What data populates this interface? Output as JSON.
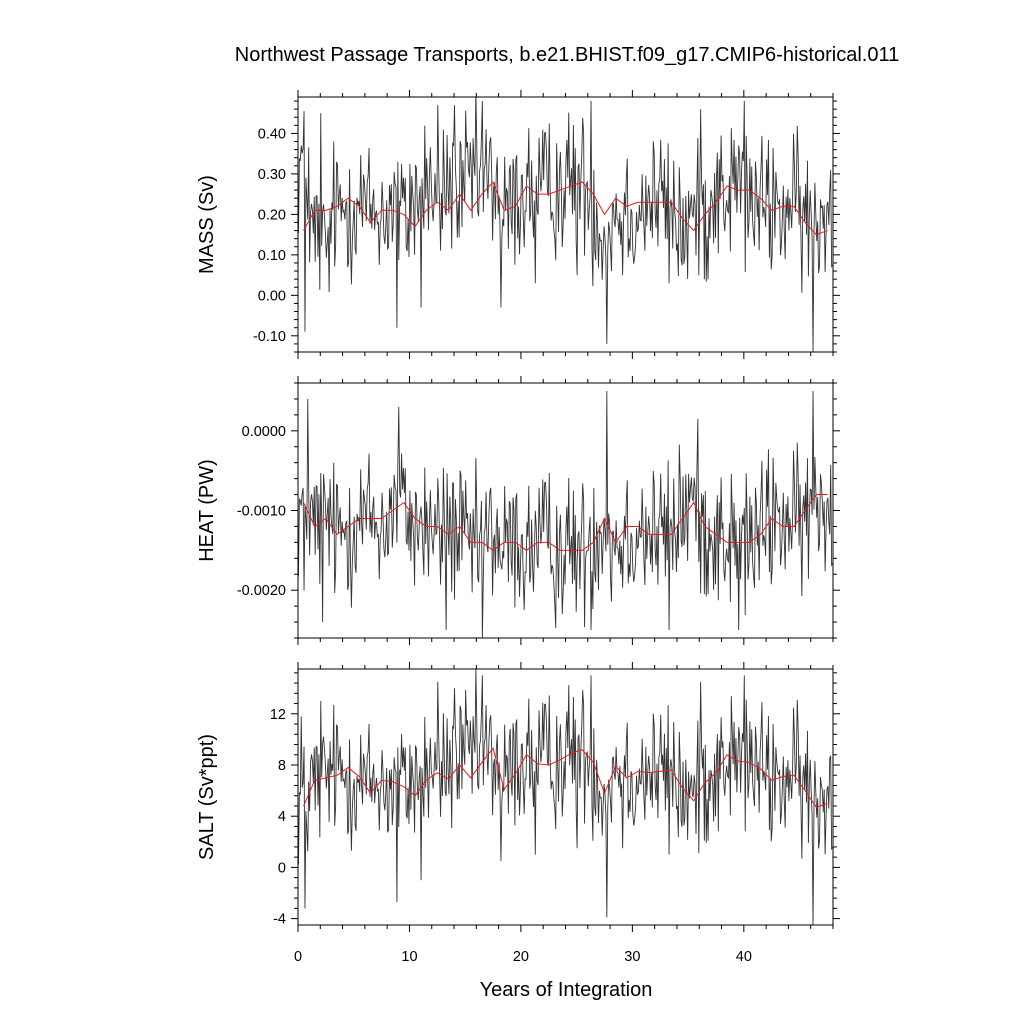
{
  "figure": {
    "title": "Northwest Passage Transports, b.e21.BHIST.f09_g17.CMIP6-historical.011"
  },
  "colors": {
    "raw_series": "#333333",
    "annual_mean": "#e41a1c",
    "frame": "#000000"
  },
  "chart_data": [
    {
      "type": "line",
      "ylabel": "MASS (Sv)",
      "xlabel": "",
      "xlim": [
        0,
        48
      ],
      "ylim": [
        -0.14,
        0.49
      ],
      "x_ticks": [
        0,
        10,
        20,
        30,
        40
      ],
      "y_ticks": [
        -0.1,
        0.0,
        0.1,
        0.2,
        0.3,
        0.4
      ],
      "y_tick_labels": [
        "-0.10",
        "0.00",
        "0.10",
        "0.20",
        "0.30",
        "0.40"
      ],
      "grid": false,
      "series": [
        {
          "style": "monthly",
          "base": [
            0.31,
            0.15,
            0.12,
            0.21,
            0.22,
            0.23,
            0.21,
            0.2,
            0.22,
            0.19,
            0.24,
            0.28,
            0.23,
            0.27,
            0.23,
            0.29,
            0.29,
            0.28,
            0.19,
            0.23,
            0.26,
            0.26,
            0.26,
            0.27,
            0.28,
            0.28,
            0.2,
            0.17,
            0.2,
            0.21,
            0.21,
            0.23,
            0.24,
            0.2,
            0.16,
            0.19,
            0.2,
            0.26,
            0.25,
            0.29,
            0.23,
            0.22,
            0.22,
            0.21,
            0.22,
            0.19,
            0.17,
            0.22
          ],
          "spread": 0.085,
          "spikes": [
            [
              0.3,
              0.37
            ],
            [
              0.6,
              -0.09
            ],
            [
              2.0,
              0.45
            ],
            [
              8.9,
              -0.08
            ],
            [
              11.0,
              -0.03
            ],
            [
              12.5,
              0.47
            ],
            [
              14.0,
              0.47
            ],
            [
              16.5,
              0.48
            ],
            [
              18.2,
              -0.03
            ],
            [
              21.3,
              0.03
            ],
            [
              25.0,
              0.05
            ],
            [
              26.3,
              0.48
            ],
            [
              27.7,
              -0.12
            ],
            [
              29.1,
              0.05
            ],
            [
              33.3,
              0.03
            ],
            [
              36.1,
              0.46
            ],
            [
              40.0,
              0.48
            ],
            [
              46.2,
              -0.14
            ],
            [
              47.7,
              0.26
            ]
          ]
        },
        {
          "style": "annual",
          "x": [
            0.5,
            1.5,
            2.5,
            3.5,
            4.5,
            5.5,
            6.5,
            7.5,
            8.5,
            9.5,
            10.5,
            11.5,
            12.5,
            13.5,
            14.5,
            15.5,
            16.5,
            17.5,
            18.5,
            19.5,
            20.5,
            21.5,
            22.5,
            23.5,
            24.5,
            25.5,
            26.5,
            27.5,
            28.5,
            29.5,
            30.5,
            31.5,
            32.5,
            33.5,
            34.5,
            35.5,
            36.5,
            37.5,
            38.5,
            39.5,
            40.5,
            41.5,
            42.5,
            43.5,
            44.5,
            45.5,
            46.5,
            47.5
          ],
          "y": [
            0.16,
            0.21,
            0.21,
            0.22,
            0.24,
            0.22,
            0.18,
            0.21,
            0.21,
            0.2,
            0.17,
            0.21,
            0.23,
            0.21,
            0.25,
            0.21,
            0.25,
            0.28,
            0.21,
            0.22,
            0.27,
            0.25,
            0.25,
            0.26,
            0.27,
            0.28,
            0.25,
            0.2,
            0.24,
            0.22,
            0.23,
            0.23,
            0.23,
            0.23,
            0.19,
            0.16,
            0.2,
            0.23,
            0.27,
            0.26,
            0.26,
            0.24,
            0.21,
            0.22,
            0.22,
            0.18,
            0.15,
            0.16
          ]
        }
      ]
    },
    {
      "type": "line",
      "ylabel": "HEAT (PW)",
      "xlabel": "",
      "xlim": [
        0,
        48
      ],
      "ylim": [
        -0.0026,
        0.0006
      ],
      "x_ticks": [
        0,
        10,
        20,
        30,
        40
      ],
      "y_ticks": [
        -0.002,
        -0.001,
        0.0
      ],
      "y_tick_labels": [
        "-0.0020",
        "-0.0010",
        "0.0000"
      ],
      "grid": false,
      "series": [
        {
          "style": "monthly",
          "base": [
            -0.001,
            -0.0012,
            -0.0011,
            -0.0013,
            -0.0012,
            -0.0011,
            -0.0011,
            -0.0012,
            -0.001,
            -0.001,
            -0.0012,
            -0.0012,
            -0.0013,
            -0.0012,
            -0.0013,
            -0.0015,
            -0.0014,
            -0.0013,
            -0.0015,
            -0.0014,
            -0.0015,
            -0.0014,
            -0.0014,
            -0.0015,
            -0.0015,
            -0.0015,
            -0.0013,
            -0.0011,
            -0.0014,
            -0.0013,
            -0.0012,
            -0.0013,
            -0.0013,
            -0.0013,
            -0.001,
            -0.0009,
            -0.0012,
            -0.0013,
            -0.0014,
            -0.0014,
            -0.0014,
            -0.0013,
            -0.0011,
            -0.0011,
            -0.0012,
            -0.0011,
            -0.0009,
            -0.0009
          ],
          "spread": 0.00045,
          "spikes": [
            [
              0.5,
              -0.002
            ],
            [
              0.9,
              0.0004
            ],
            [
              2.2,
              -0.0024
            ],
            [
              9.0,
              0.0003
            ],
            [
              13.3,
              -0.0025
            ],
            [
              16.5,
              -0.0026
            ],
            [
              27.7,
              0.0005
            ],
            [
              26.3,
              -0.0025
            ],
            [
              33.3,
              -0.0025
            ],
            [
              39.5,
              -0.0025
            ],
            [
              46.2,
              0.0005
            ],
            [
              47.7,
              -0.0013
            ]
          ]
        },
        {
          "style": "annual",
          "x": [
            0.5,
            1.5,
            2.5,
            3.5,
            4.5,
            5.5,
            6.5,
            7.5,
            8.5,
            9.5,
            10.5,
            11.5,
            12.5,
            13.5,
            14.5,
            15.5,
            16.5,
            17.5,
            18.5,
            19.5,
            20.5,
            21.5,
            22.5,
            23.5,
            24.5,
            25.5,
            26.5,
            27.5,
            28.5,
            29.5,
            30.5,
            31.5,
            32.5,
            33.5,
            34.5,
            35.5,
            36.5,
            37.5,
            38.5,
            39.5,
            40.5,
            41.5,
            42.5,
            43.5,
            44.5,
            45.5,
            46.5,
            47.5
          ],
          "y": [
            -0.0009,
            -0.0012,
            -0.0011,
            -0.0013,
            -0.0012,
            -0.0011,
            -0.0011,
            -0.0011,
            -0.001,
            -0.0009,
            -0.0011,
            -0.0012,
            -0.0012,
            -0.0013,
            -0.0012,
            -0.0014,
            -0.0014,
            -0.0015,
            -0.0014,
            -0.0014,
            -0.0015,
            -0.0014,
            -0.0014,
            -0.0015,
            -0.0015,
            -0.0015,
            -0.0014,
            -0.0011,
            -0.0014,
            -0.0012,
            -0.0012,
            -0.0013,
            -0.0013,
            -0.0013,
            -0.0011,
            -0.0009,
            -0.0012,
            -0.0013,
            -0.0014,
            -0.0014,
            -0.0014,
            -0.0013,
            -0.0011,
            -0.0012,
            -0.0012,
            -0.001,
            -0.0008,
            -0.0008
          ]
        }
      ]
    },
    {
      "type": "line",
      "ylabel": "SALT (Sv*ppt)",
      "xlabel": "Years of Integration",
      "xlim": [
        0,
        48
      ],
      "ylim": [
        -4.5,
        15.5
      ],
      "x_ticks": [
        0,
        10,
        20,
        30,
        40
      ],
      "x_tick_labels": [
        "0",
        "10",
        "20",
        "30",
        "40"
      ],
      "y_ticks": [
        -4,
        0,
        4,
        8,
        12
      ],
      "y_tick_labels": [
        "-4",
        "0",
        "4",
        "8",
        "12"
      ],
      "grid": false,
      "series": [
        {
          "style": "monthly",
          "base": [
            5.0,
            6.5,
            7.0,
            7.5,
            7.2,
            6.8,
            6.5,
            6.7,
            6.0,
            6.3,
            7.0,
            7.5,
            7.6,
            7.8,
            8.0,
            8.8,
            9.0,
            8.5,
            6.5,
            8.0,
            8.5,
            8.3,
            8.4,
            8.6,
            9.0,
            9.0,
            7.5,
            6.5,
            7.8,
            7.4,
            7.3,
            7.4,
            7.5,
            7.3,
            5.8,
            5.4,
            7.0,
            7.6,
            8.4,
            8.5,
            8.1,
            7.6,
            6.8,
            6.8,
            7.0,
            6.3,
            5.0,
            6.0
          ],
          "spread": 2.6,
          "spikes": [
            [
              0.3,
              11.8
            ],
            [
              0.6,
              -3.2
            ],
            [
              2.0,
              13.0
            ],
            [
              8.9,
              -2.7
            ],
            [
              11.0,
              -1.0
            ],
            [
              12.5,
              14.5
            ],
            [
              14.0,
              14.0
            ],
            [
              16.5,
              15.0
            ],
            [
              18.2,
              0.5
            ],
            [
              21.3,
              1.0
            ],
            [
              25.0,
              1.5
            ],
            [
              26.3,
              15.0
            ],
            [
              27.7,
              -3.9
            ],
            [
              29.1,
              1.5
            ],
            [
              33.3,
              1.0
            ],
            [
              36.1,
              14.5
            ],
            [
              40.0,
              15.0
            ],
            [
              46.2,
              -4.5
            ],
            [
              47.7,
              8.5
            ]
          ]
        },
        {
          "style": "annual",
          "x": [
            0.5,
            1.5,
            2.5,
            3.5,
            4.5,
            5.5,
            6.5,
            7.5,
            8.5,
            9.5,
            10.5,
            11.5,
            12.5,
            13.5,
            14.5,
            15.5,
            16.5,
            17.5,
            18.5,
            19.5,
            20.5,
            21.5,
            22.5,
            23.5,
            24.5,
            25.5,
            26.5,
            27.5,
            28.5,
            29.5,
            30.5,
            31.5,
            32.5,
            33.5,
            34.5,
            35.5,
            36.5,
            37.5,
            38.5,
            39.5,
            40.5,
            41.5,
            42.5,
            43.5,
            44.5,
            45.5,
            46.5,
            47.5
          ],
          "y": [
            4.8,
            6.8,
            7.0,
            7.2,
            7.8,
            7.1,
            5.8,
            6.8,
            6.7,
            6.3,
            5.6,
            6.8,
            7.4,
            6.9,
            8.0,
            7.0,
            8.2,
            9.3,
            6.1,
            7.3,
            8.8,
            8.1,
            8.0,
            8.4,
            8.9,
            9.2,
            8.2,
            5.8,
            7.9,
            7.0,
            7.5,
            7.4,
            7.5,
            7.6,
            6.2,
            5.2,
            6.6,
            7.4,
            8.8,
            8.3,
            8.2,
            7.7,
            6.8,
            7.1,
            7.2,
            6.0,
            4.7,
            5.0
          ]
        }
      ]
    }
  ]
}
